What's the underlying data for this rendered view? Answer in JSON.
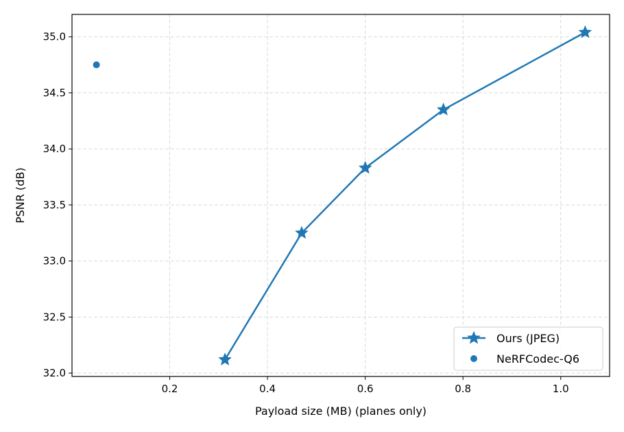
{
  "chart_data": {
    "type": "line",
    "title": "",
    "xlabel": "Payload size (MB) (planes only)",
    "ylabel": "PSNR (dB)",
    "xlim": [
      0.0,
      1.1
    ],
    "ylim": [
      31.97,
      35.2
    ],
    "xticks": [
      0.2,
      0.4,
      0.6,
      0.8,
      1.0
    ],
    "xtick_labels": [
      "0.2",
      "0.4",
      "0.6",
      "0.8",
      "1.0"
    ],
    "yticks": [
      32.0,
      32.5,
      33.0,
      33.5,
      34.0,
      34.5,
      35.0
    ],
    "ytick_labels": [
      "32.0",
      "32.5",
      "33.0",
      "33.5",
      "34.0",
      "34.5",
      "35.0"
    ],
    "grid": true,
    "legend_position": "bottom-right",
    "series": [
      {
        "name": "Ours (JPEG)",
        "style": "line-star",
        "color": "#1f77b4",
        "x": [
          0.313,
          0.47,
          0.6,
          0.76,
          1.05
        ],
        "y": [
          32.12,
          33.25,
          33.83,
          34.35,
          35.04
        ]
      },
      {
        "name": "NeRFCodec-Q6",
        "style": "scatter",
        "color": "#1f77b4",
        "x": [
          0.05
        ],
        "y": [
          34.75
        ]
      }
    ]
  }
}
